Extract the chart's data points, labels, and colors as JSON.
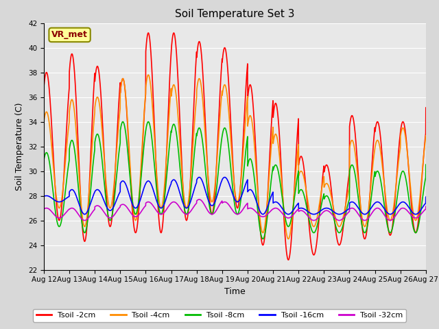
{
  "title": "Soil Temperature Set 3",
  "xlabel": "Time",
  "ylabel": "Soil Temperature (C)",
  "ylim": [
    22,
    42
  ],
  "x_tick_labels": [
    "Aug 12",
    "Aug 13",
    "Aug 14",
    "Aug 15",
    "Aug 16",
    "Aug 17",
    "Aug 18",
    "Aug 19",
    "Aug 20",
    "Aug 21",
    "Aug 22",
    "Aug 23",
    "Aug 24",
    "Aug 25",
    "Aug 26",
    "Aug 27"
  ],
  "background_color": "#d8d8d8",
  "plot_bg_color": "#e8e8e8",
  "legend_label": "VR_met",
  "series_labels": [
    "Tsoil -2cm",
    "Tsoil -4cm",
    "Tsoil -8cm",
    "Tsoil -16cm",
    "Tsoil -32cm"
  ],
  "series_colors": [
    "#ff0000",
    "#ff8c00",
    "#00bb00",
    "#0000ff",
    "#cc00cc"
  ],
  "grid_color": "#ffffff",
  "title_fontsize": 11,
  "axis_fontsize": 9,
  "tick_fontsize": 7.5,
  "peaks_2": [
    38.0,
    39.5,
    38.5,
    37.5,
    41.2,
    41.2,
    40.5,
    40.0,
    37.0,
    35.5,
    31.2,
    30.5,
    34.5,
    34.0,
    34.0,
    36.0
  ],
  "troughs_2": [
    26.0,
    24.3,
    25.5,
    25.0,
    25.0,
    26.0,
    26.5,
    27.0,
    24.0,
    22.8,
    23.2,
    24.0,
    24.5,
    24.8,
    25.0,
    27.0
  ],
  "peaks_4": [
    34.8,
    35.8,
    36.0,
    37.5,
    37.8,
    37.0,
    37.5,
    37.0,
    34.5,
    33.0,
    30.0,
    29.0,
    32.5,
    32.5,
    33.5,
    33.5
  ],
  "troughs_4": [
    27.0,
    25.5,
    27.0,
    26.0,
    27.0,
    27.0,
    27.5,
    27.5,
    25.0,
    24.5,
    25.5,
    25.5,
    25.5,
    26.0,
    26.0,
    27.0
  ],
  "peaks_8": [
    31.5,
    32.5,
    33.0,
    34.0,
    34.0,
    33.8,
    33.5,
    33.5,
    31.0,
    30.5,
    28.5,
    28.0,
    30.5,
    30.0,
    30.0,
    31.0
  ],
  "troughs_8": [
    25.5,
    25.0,
    26.0,
    26.5,
    26.5,
    26.5,
    26.5,
    26.5,
    24.5,
    25.5,
    25.0,
    25.0,
    25.0,
    25.0,
    25.0,
    26.0
  ],
  "peaks_16": [
    28.0,
    28.5,
    28.5,
    29.2,
    29.2,
    29.3,
    29.5,
    29.5,
    28.5,
    27.5,
    27.0,
    27.0,
    27.5,
    27.5,
    27.5,
    28.0
  ],
  "troughs_16": [
    27.5,
    26.5,
    26.8,
    27.0,
    27.0,
    27.0,
    27.2,
    27.5,
    26.5,
    26.5,
    26.5,
    26.5,
    26.5,
    26.5,
    26.5,
    27.0
  ],
  "peaks_32": [
    27.0,
    27.0,
    27.2,
    27.3,
    27.5,
    27.5,
    27.7,
    27.5,
    27.0,
    27.0,
    26.8,
    26.8,
    27.0,
    27.0,
    27.0,
    27.2
  ],
  "troughs_32": [
    26.2,
    26.0,
    26.2,
    26.3,
    26.5,
    26.5,
    26.5,
    26.5,
    26.3,
    26.2,
    26.0,
    26.0,
    26.0,
    26.0,
    26.2,
    26.5
  ]
}
